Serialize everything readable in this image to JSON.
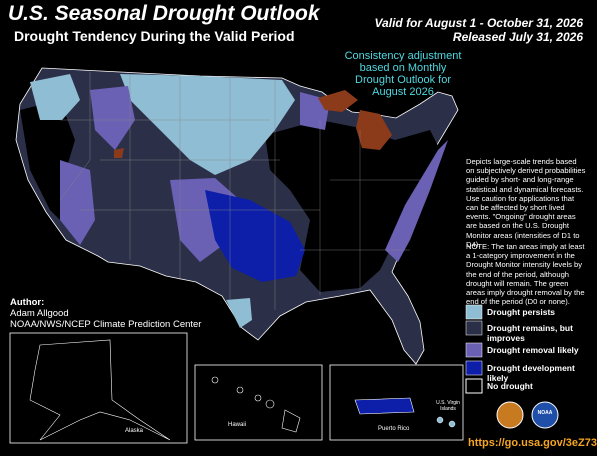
{
  "header": {
    "title": "U.S. Seasonal Drought Outlook",
    "subtitle": "Drought Tendency During the Valid Period",
    "valid": "Valid for August 1 - October 31, 2026",
    "released": "Released July 31, 2026"
  },
  "annotation": "Consistency adjustment based on Monthly Drought Outlook for August 2026",
  "description": "Depicts large-scale trends based on subjectively derived probabilities guided by short- and long-range statistical and dynamical forecasts. Use caution for applications that can be affected by short lived events. \"Ongoing\" drought areas are based on the U.S. Drought Monitor areas (intensities of D1 to D4).",
  "note": "NOTE: The tan areas imply at least a 1-category improvement in the Drought Monitor intensity levels by the end of the period, although drought will remain. The green areas imply drought removal by the end of the period (D0 or none).",
  "author": {
    "label": "Author:",
    "name": "Adam Allgood",
    "org": "NOAA/NWS/NCEP Climate Prediction Center"
  },
  "legend": [
    {
      "label": "Drought persists",
      "color": "#8fbdd3"
    },
    {
      "label": "Drought remains, but improves",
      "color": "#2b3048"
    },
    {
      "label": "Drought removal likely",
      "color": "#6a60b4"
    },
    {
      "label": "Drought development likely",
      "color": "#0d1fa8"
    },
    {
      "label": "No drought",
      "color": "#000000"
    }
  ],
  "insets": {
    "alaska": "Alaska",
    "hawaii": "Hawaii",
    "puerto_rico": "Puerto Rico",
    "virgin_islands": "U.S. Virgin Islands"
  },
  "logo": "NOAA",
  "url": "https://go.usa.gov/3eZ73"
}
